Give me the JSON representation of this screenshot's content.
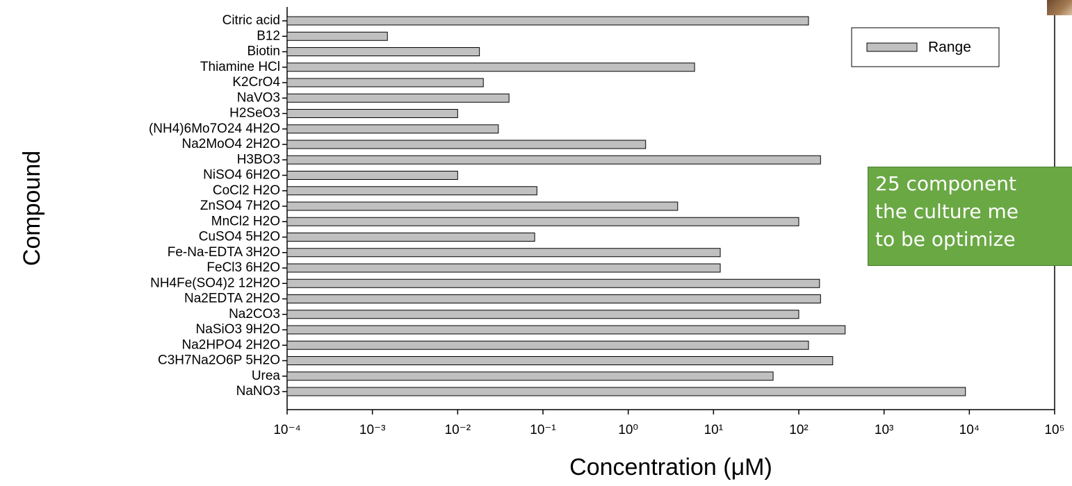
{
  "chart_data": {
    "type": "barh",
    "xlabel": "Concentration (μM)",
    "ylabel": "Compound",
    "categories": [
      "Citric acid",
      "B12",
      "Biotin",
      "Thiamine HCl",
      "K2CrO4",
      "NaVO3",
      "H2SeO3",
      "(NH4)6Mo7O24 4H2O",
      "Na2MoO4 2H2O",
      "H3BO3",
      "NiSO4 6H2O",
      "CoCl2 H2O",
      "ZnSO4 7H2O",
      "MnCl2 H2O",
      "CuSO4 5H2O",
      "Fe-Na-EDTA 3H2O",
      "FeCl3 6H2O",
      "NH4Fe(SO4)2 12H2O",
      "Na2EDTA 2H2O",
      "Na2CO3",
      "NaSiO3 9H2O",
      "Na2HPO4 2H2O",
      "C3H7Na2O6P 5H2O",
      "Urea",
      "NaNO3"
    ],
    "series": [
      {
        "name": "Range",
        "color": "#c0c0c0",
        "values": [
          130,
          0.0015,
          0.018,
          6,
          0.02,
          0.04,
          0.01,
          0.03,
          1.6,
          180,
          0.01,
          0.085,
          3.8,
          100,
          0.08,
          12,
          12,
          175,
          180,
          100,
          350,
          130,
          250,
          50,
          9000
        ]
      }
    ],
    "xscale": "log",
    "xlim": [
      0.0001,
      100000
    ],
    "xticks": [
      {
        "value": 0.0001,
        "label": "10⁻⁴"
      },
      {
        "value": 0.001,
        "label": "10⁻³"
      },
      {
        "value": 0.01,
        "label": "10⁻²"
      },
      {
        "value": 0.1,
        "label": "10⁻¹"
      },
      {
        "value": 1,
        "label": "10⁰"
      },
      {
        "value": 10,
        "label": "10¹"
      },
      {
        "value": 100,
        "label": "10²"
      },
      {
        "value": 1000,
        "label": "10³"
      },
      {
        "value": 10000,
        "label": "10⁴"
      },
      {
        "value": 100000,
        "label": "10⁵"
      }
    ],
    "grid": false,
    "legend": "upper right"
  },
  "annotation": {
    "lines": [
      "25 component",
      "the culture me",
      "to be optimize"
    ]
  }
}
